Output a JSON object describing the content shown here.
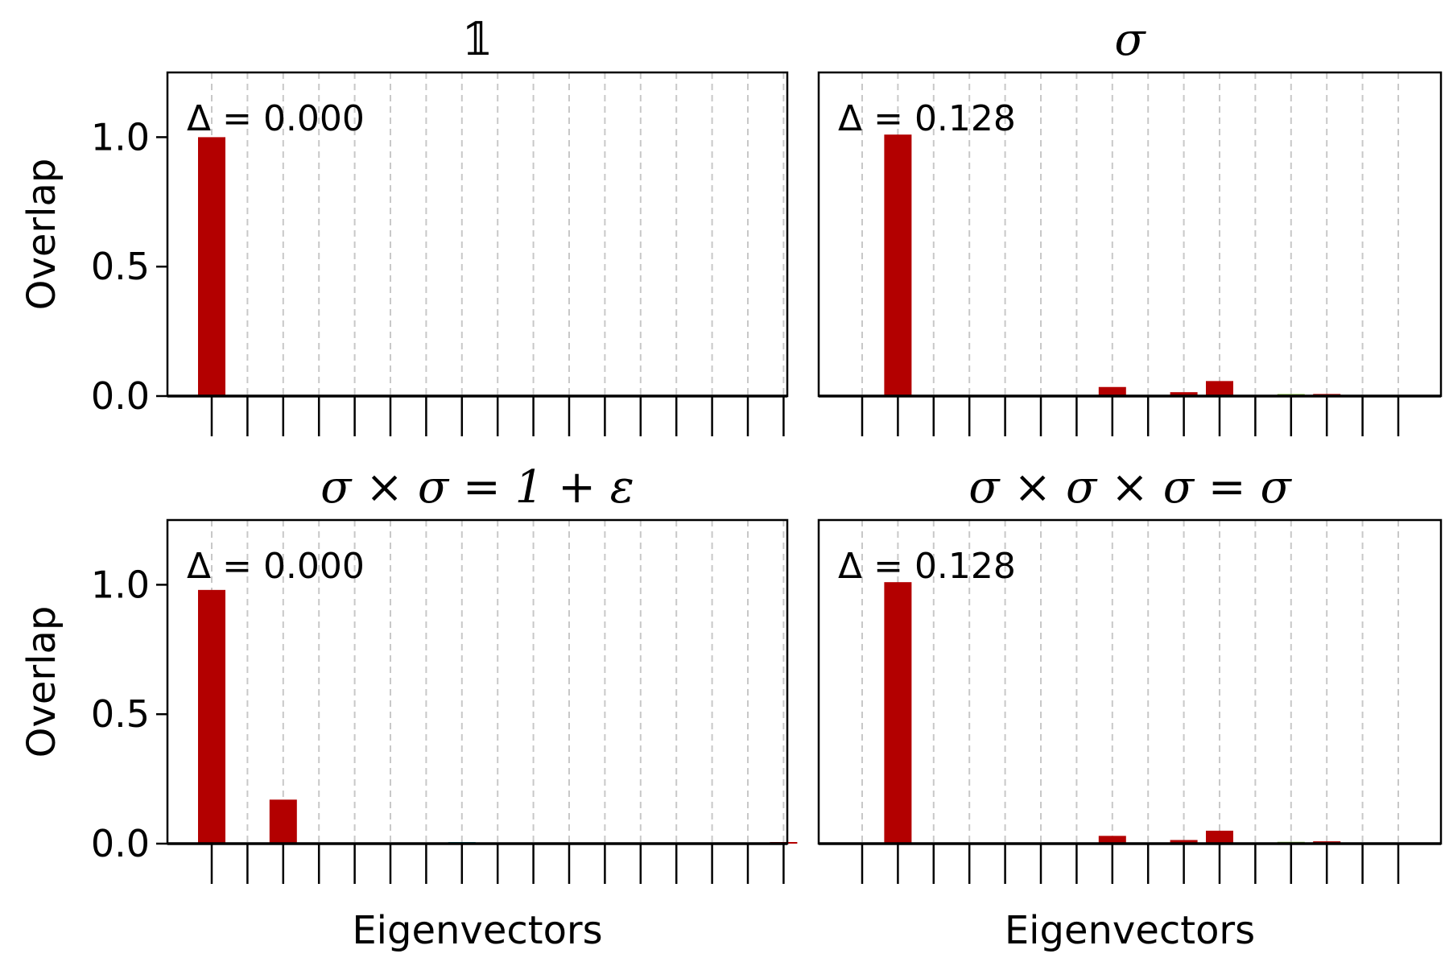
{
  "chart_data": [
    {
      "type": "bar",
      "title": "𝟙",
      "annotation": "Δ = 0.000",
      "ylabel": "Overlap",
      "xlabel": "",
      "ylim": [
        0,
        1.25
      ],
      "yticks": [
        "0.0",
        "0.5",
        "1.0"
      ],
      "ytick_values": [
        0,
        0.5,
        1.0
      ],
      "n_categories": 17,
      "grid": "vertical dashed",
      "values": [
        1.0,
        0,
        0,
        0,
        0,
        0,
        0,
        0,
        0,
        0,
        0,
        0,
        0,
        0,
        0,
        0,
        0
      ],
      "colors": [
        "#b30000",
        "#b30000",
        "#b30000",
        "#b30000",
        "#b30000",
        "#b30000",
        "#b30000",
        "#b30000",
        "#b30000",
        "#b30000",
        "#b30000",
        "#b30000",
        "#b30000",
        "#b30000",
        "#b30000",
        "#b30000",
        "#b30000"
      ]
    },
    {
      "type": "bar",
      "title": "σ",
      "annotation": "Δ = 0.128",
      "ylabel": "",
      "xlabel": "",
      "ylim": [
        0,
        1.25
      ],
      "yticks": [],
      "ytick_values": [],
      "n_categories": 16,
      "grid": "vertical dashed",
      "values": [
        0,
        1.01,
        0,
        0,
        0,
        0,
        0,
        0.035,
        0,
        0.015,
        0.058,
        0,
        0.008,
        0.008,
        0,
        0
      ],
      "colors": [
        "#b30000",
        "#b30000",
        "#b30000",
        "#b30000",
        "#b30000",
        "#b30000",
        "#b30000",
        "#b30000",
        "#b30000",
        "#b30000",
        "#b30000",
        "#b30000",
        "#8bc34a",
        "#b30000",
        "#b30000",
        "#b30000"
      ]
    },
    {
      "type": "bar",
      "title": "σ × σ = 1 + ε",
      "annotation": "Δ = 0.000",
      "ylabel": "Overlap",
      "xlabel": "Eigenvectors",
      "ylim": [
        0,
        1.25
      ],
      "yticks": [
        "0.0",
        "0.5",
        "1.0"
      ],
      "ytick_values": [
        0,
        0.5,
        1.0
      ],
      "n_categories": 17,
      "grid": "vertical dashed",
      "values": [
        0.98,
        0,
        0.17,
        0,
        0,
        0,
        0,
        0.004,
        0,
        0,
        0,
        0,
        0,
        0,
        0,
        0,
        0.004
      ],
      "colors": [
        "#b30000",
        "#b30000",
        "#b30000",
        "#b30000",
        "#b30000",
        "#b30000",
        "#b30000",
        "#1a9fb3",
        "#b30000",
        "#b30000",
        "#b30000",
        "#b30000",
        "#b30000",
        "#b30000",
        "#b30000",
        "#b30000",
        "#b30000"
      ]
    },
    {
      "type": "bar",
      "title": "σ × σ × σ = σ",
      "annotation": "Δ = 0.128",
      "ylabel": "",
      "xlabel": "Eigenvectors",
      "ylim": [
        0,
        1.25
      ],
      "yticks": [],
      "ytick_values": [],
      "n_categories": 16,
      "grid": "vertical dashed",
      "values": [
        0,
        1.01,
        0,
        0,
        0,
        0,
        0,
        0.03,
        0,
        0.014,
        0.05,
        0,
        0.007,
        0.009,
        0,
        0
      ],
      "colors": [
        "#b30000",
        "#b30000",
        "#b30000",
        "#b30000",
        "#b30000",
        "#b30000",
        "#b30000",
        "#b30000",
        "#b30000",
        "#b30000",
        "#b30000",
        "#b30000",
        "#8bc34a",
        "#b30000",
        "#b30000",
        "#b30000"
      ]
    }
  ]
}
